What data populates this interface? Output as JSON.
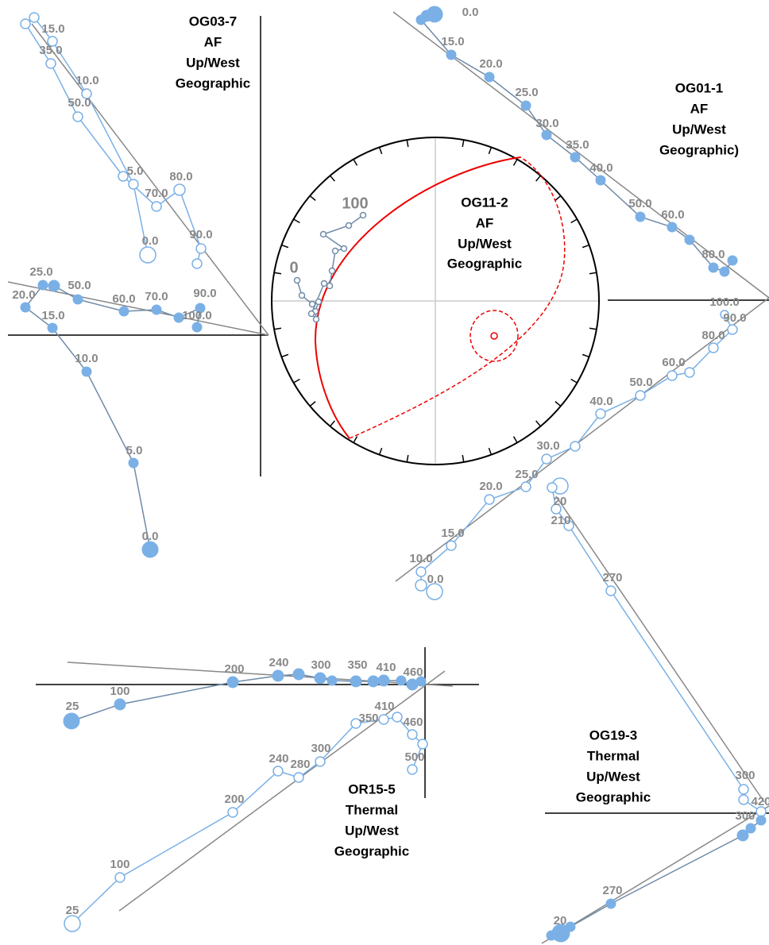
{
  "panels": [
    {
      "title": [
        "OG03-7",
        "AF",
        "Up/West",
        "Geographic"
      ],
      "open_labels": [
        "15.0",
        "35.0",
        "10.0",
        "50.0",
        "5.0",
        "80.0",
        "70.0",
        "0.0",
        "90.0"
      ],
      "filled_labels": [
        "25.0",
        "50.0",
        "20.0",
        "15.0",
        "60.0",
        "70.0",
        "90.0",
        "100.0",
        "10.0",
        "5.0",
        "0.0"
      ]
    },
    {
      "title": [
        "OG01-1",
        "AF",
        "Up/West",
        "Geographic)"
      ],
      "open_labels": [
        "0.0",
        "10.0",
        "15.0",
        "20.0",
        "25.0",
        "30.0",
        "40.0",
        "50.0",
        "60.0",
        "80.0",
        "90.0"
      ],
      "filled_labels": [
        "0.0",
        "15.0",
        "20.0",
        "25.0",
        "30.0",
        "35.0",
        "40.0",
        "50.0",
        "60.0",
        "80.0",
        "100.0"
      ]
    },
    {
      "title": [
        "OG19-3",
        "Thermal",
        "Up/West",
        "Geographic"
      ],
      "open_labels": [
        "20",
        "210",
        "270",
        "300",
        "420"
      ],
      "filled_labels": [
        "20",
        "270",
        "300"
      ]
    },
    {
      "title": [
        "OR15-5",
        "Thermal",
        "Up/West",
        "Geographic"
      ],
      "open_labels": [
        "25",
        "100",
        "200",
        "240",
        "280",
        "300",
        "350",
        "410",
        "460",
        "500"
      ],
      "filled_labels": [
        "25",
        "100",
        "200",
        "240",
        "300",
        "350",
        "410",
        "460"
      ]
    }
  ],
  "stereonet": {
    "title": [
      "OG11-2",
      "AF",
      "Up/West",
      "Geographic"
    ],
    "labels": [
      "100",
      "0"
    ]
  }
}
